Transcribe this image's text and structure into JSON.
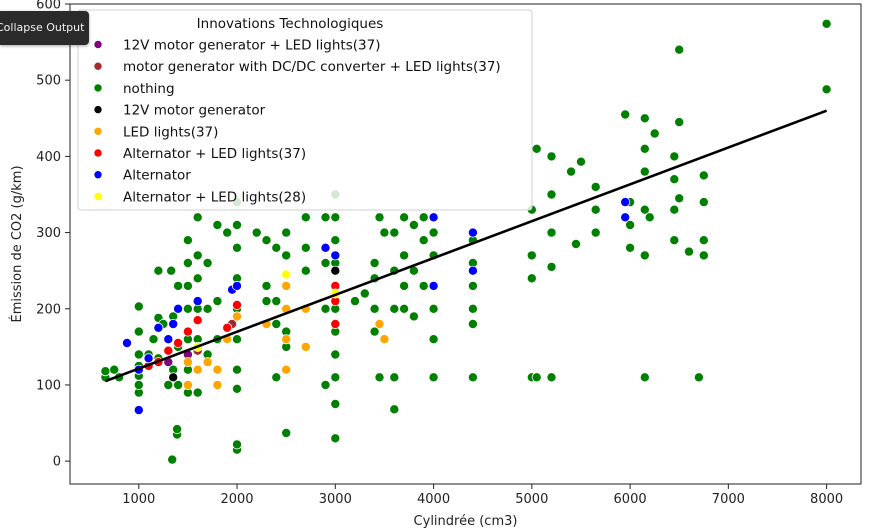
{
  "ui": {
    "collapse_label": "Collapse Output"
  },
  "chart_data": {
    "type": "scatter",
    "title": "",
    "xlabel": "Cylindrée (cm3)",
    "ylabel": "Émission de CO2 (g/km)",
    "xlim": [
      300,
      8350
    ],
    "ylim": [
      -30,
      600
    ],
    "xticks": [
      1000,
      2000,
      3000,
      4000,
      5000,
      6000,
      7000,
      8000
    ],
    "yticks": [
      0,
      100,
      200,
      300,
      400,
      500,
      600
    ],
    "legend_title": "Innovations Technologiques",
    "legend_position": "top-left",
    "grid": false,
    "series": [
      {
        "name": "12V motor generator + LED lights(37)",
        "color": "#800080",
        "points": [
          [
            1300,
            130
          ],
          [
            1500,
            140
          ],
          [
            1600,
            150
          ]
        ]
      },
      {
        "name": "motor generator with DC/DC converter + LED lights(37)",
        "color": "#a52a2a",
        "points": [
          [
            1400,
            150
          ],
          [
            1600,
            145
          ],
          [
            1950,
            180
          ],
          [
            3000,
            200
          ]
        ]
      },
      {
        "name": "nothing",
        "color": "#008000",
        "points": [
          [
            660,
            110
          ],
          [
            660,
            118
          ],
          [
            750,
            120
          ],
          [
            800,
            110
          ],
          [
            1000,
            90
          ],
          [
            1000,
            100
          ],
          [
            1000,
            112
          ],
          [
            1000,
            125
          ],
          [
            1000,
            140
          ],
          [
            1000,
            170
          ],
          [
            1000,
            203
          ],
          [
            1100,
            140
          ],
          [
            1150,
            160
          ],
          [
            1200,
            250
          ],
          [
            1200,
            135
          ],
          [
            1200,
            188
          ],
          [
            1250,
            180
          ],
          [
            1300,
            100
          ],
          [
            1330,
            250
          ],
          [
            1340,
            2
          ],
          [
            1350,
            190
          ],
          [
            1350,
            120
          ],
          [
            1390,
            35
          ],
          [
            1390,
            42
          ],
          [
            1400,
            100
          ],
          [
            1400,
            150
          ],
          [
            1400,
            200
          ],
          [
            1400,
            230
          ],
          [
            1500,
            90
          ],
          [
            1500,
            120
          ],
          [
            1500,
            160
          ],
          [
            1500,
            200
          ],
          [
            1500,
            230
          ],
          [
            1500,
            260
          ],
          [
            1500,
            290
          ],
          [
            1600,
            90
          ],
          [
            1600,
            120
          ],
          [
            1600,
            160
          ],
          [
            1600,
            200
          ],
          [
            1600,
            240
          ],
          [
            1600,
            270
          ],
          [
            1600,
            320
          ],
          [
            1700,
            140
          ],
          [
            1700,
            200
          ],
          [
            1700,
            260
          ],
          [
            1800,
            160
          ],
          [
            1800,
            210
          ],
          [
            1800,
            310
          ],
          [
            1900,
            300
          ],
          [
            2000,
            15
          ],
          [
            2000,
            22
          ],
          [
            2000,
            95
          ],
          [
            2000,
            120
          ],
          [
            2000,
            160
          ],
          [
            2000,
            200
          ],
          [
            2000,
            240
          ],
          [
            2000,
            280
          ],
          [
            2000,
            310
          ],
          [
            2000,
            340
          ],
          [
            2200,
            300
          ],
          [
            2300,
            180
          ],
          [
            2300,
            210
          ],
          [
            2300,
            230
          ],
          [
            2300,
            290
          ],
          [
            2400,
            110
          ],
          [
            2400,
            180
          ],
          [
            2400,
            210
          ],
          [
            2400,
            280
          ],
          [
            2500,
            37
          ],
          [
            2500,
            150
          ],
          [
            2500,
            170
          ],
          [
            2500,
            200
          ],
          [
            2500,
            270
          ],
          [
            2500,
            300
          ],
          [
            2700,
            200
          ],
          [
            2700,
            250
          ],
          [
            2700,
            280
          ],
          [
            2700,
            320
          ],
          [
            2900,
            100
          ],
          [
            2900,
            200
          ],
          [
            2900,
            260
          ],
          [
            2900,
            320
          ],
          [
            3000,
            30
          ],
          [
            3000,
            75
          ],
          [
            3000,
            110
          ],
          [
            3000,
            140
          ],
          [
            3000,
            170
          ],
          [
            3000,
            200
          ],
          [
            3000,
            230
          ],
          [
            3000,
            260
          ],
          [
            3000,
            290
          ],
          [
            3000,
            320
          ],
          [
            3000,
            350
          ],
          [
            3200,
            210
          ],
          [
            3300,
            220
          ],
          [
            3400,
            170
          ],
          [
            3400,
            200
          ],
          [
            3400,
            240
          ],
          [
            3400,
            260
          ],
          [
            3450,
            110
          ],
          [
            3450,
            320
          ],
          [
            3500,
            300
          ],
          [
            3600,
            68
          ],
          [
            3600,
            110
          ],
          [
            3600,
            200
          ],
          [
            3600,
            250
          ],
          [
            3600,
            300
          ],
          [
            3700,
            200
          ],
          [
            3700,
            230
          ],
          [
            3700,
            270
          ],
          [
            3700,
            320
          ],
          [
            3800,
            190
          ],
          [
            3800,
            250
          ],
          [
            3800,
            310
          ],
          [
            3900,
            230
          ],
          [
            3900,
            290
          ],
          [
            3900,
            320
          ],
          [
            4000,
            110
          ],
          [
            4000,
            160
          ],
          [
            4000,
            200
          ],
          [
            4000,
            230
          ],
          [
            4000,
            270
          ],
          [
            4000,
            300
          ],
          [
            4400,
            110
          ],
          [
            4400,
            180
          ],
          [
            4400,
            200
          ],
          [
            4400,
            230
          ],
          [
            4400,
            260
          ],
          [
            4400,
            290
          ],
          [
            5000,
            110
          ],
          [
            5000,
            240
          ],
          [
            5000,
            270
          ],
          [
            5000,
            330
          ],
          [
            5050,
            110
          ],
          [
            5050,
            410
          ],
          [
            5200,
            110
          ],
          [
            5200,
            255
          ],
          [
            5200,
            300
          ],
          [
            5200,
            350
          ],
          [
            5200,
            400
          ],
          [
            5400,
            380
          ],
          [
            5450,
            285
          ],
          [
            5500,
            393
          ],
          [
            5650,
            300
          ],
          [
            5650,
            330
          ],
          [
            5650,
            360
          ],
          [
            5950,
            455
          ],
          [
            6000,
            280
          ],
          [
            6000,
            310
          ],
          [
            6000,
            340
          ],
          [
            6150,
            110
          ],
          [
            6150,
            270
          ],
          [
            6150,
            330
          ],
          [
            6150,
            380
          ],
          [
            6150,
            410
          ],
          [
            6150,
            450
          ],
          [
            6200,
            320
          ],
          [
            6250,
            430
          ],
          [
            6450,
            290
          ],
          [
            6450,
            330
          ],
          [
            6450,
            370
          ],
          [
            6450,
            400
          ],
          [
            6500,
            345
          ],
          [
            6500,
            445
          ],
          [
            6500,
            540
          ],
          [
            6600,
            275
          ],
          [
            6700,
            110
          ],
          [
            6750,
            270
          ],
          [
            6750,
            290
          ],
          [
            6750,
            340
          ],
          [
            6750,
            375
          ],
          [
            8000,
            488
          ],
          [
            8000,
            574
          ]
        ]
      },
      {
        "name": "12V motor generator",
        "color": "#000000",
        "points": [
          [
            1350,
            110
          ],
          [
            3000,
            250
          ]
        ]
      },
      {
        "name": "LED lights(37)",
        "color": "#ffa500",
        "points": [
          [
            1500,
            100
          ],
          [
            1500,
            130
          ],
          [
            1600,
            120
          ],
          [
            1700,
            130
          ],
          [
            1800,
            100
          ],
          [
            1800,
            120
          ],
          [
            1900,
            160
          ],
          [
            2000,
            190
          ],
          [
            2300,
            180
          ],
          [
            2500,
            120
          ],
          [
            2500,
            160
          ],
          [
            2500,
            200
          ],
          [
            2500,
            230
          ],
          [
            2700,
            200
          ],
          [
            2700,
            150
          ],
          [
            3450,
            180
          ],
          [
            3500,
            160
          ]
        ]
      },
      {
        "name": "Alternator + LED lights(37)",
        "color": "#ff0000",
        "points": [
          [
            1100,
            125
          ],
          [
            1200,
            130
          ],
          [
            1300,
            145
          ],
          [
            1400,
            155
          ],
          [
            1500,
            170
          ],
          [
            1600,
            185
          ],
          [
            1900,
            175
          ],
          [
            2000,
            205
          ],
          [
            3000,
            180
          ],
          [
            3000,
            210
          ],
          [
            3000,
            230
          ]
        ]
      },
      {
        "name": "Alternator",
        "color": "#0000ff",
        "points": [
          [
            880,
            155
          ],
          [
            1000,
            67
          ],
          [
            1000,
            120
          ],
          [
            1100,
            135
          ],
          [
            1200,
            175
          ],
          [
            1300,
            160
          ],
          [
            1350,
            180
          ],
          [
            1400,
            200
          ],
          [
            1600,
            210
          ],
          [
            1950,
            225
          ],
          [
            2000,
            230
          ],
          [
            2900,
            280
          ],
          [
            3000,
            270
          ],
          [
            4000,
            230
          ],
          [
            4000,
            320
          ],
          [
            4400,
            250
          ],
          [
            4400,
            300
          ],
          [
            5950,
            320
          ],
          [
            5950,
            340
          ]
        ]
      },
      {
        "name": "Alternator + LED lights(28)",
        "color": "#ffff00",
        "points": [
          [
            1600,
            150
          ],
          [
            2500,
            245
          ],
          [
            3000,
            220
          ]
        ]
      }
    ],
    "regression_line": {
      "color": "#000000",
      "points": [
        [
          660,
          105
        ],
        [
          8000,
          460
        ]
      ]
    }
  }
}
